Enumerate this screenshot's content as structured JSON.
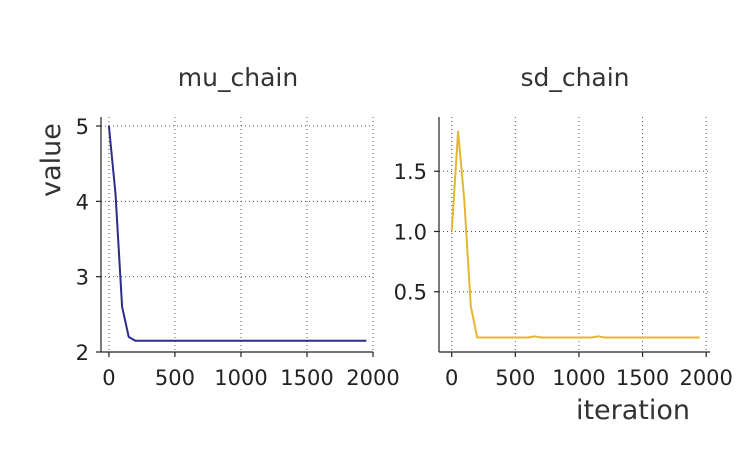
{
  "chart_data": [
    {
      "type": "line",
      "title": "mu_chain",
      "ylabel": "value",
      "xlabel": "",
      "xlim": [
        -60,
        2000
      ],
      "ylim": [
        2.0,
        5.12
      ],
      "xticks": [
        0,
        500,
        1000,
        1500,
        2000
      ],
      "xtick_labels": [
        "0",
        "500",
        "1000",
        "1500",
        "2000"
      ],
      "yticks": [
        2,
        3,
        4,
        5
      ],
      "ytick_labels": [
        "2",
        "3",
        "4",
        "5"
      ],
      "grid": true,
      "series": [
        {
          "color": "#2c2c8c",
          "x": [
            0,
            50,
            100,
            150,
            200,
            250,
            300,
            500,
            1000,
            1500,
            1950
          ],
          "y": [
            5.0,
            4.1,
            2.6,
            2.2,
            2.15,
            2.15,
            2.15,
            2.15,
            2.15,
            2.15,
            2.15
          ]
        }
      ]
    },
    {
      "type": "line",
      "title": "sd_chain",
      "ylabel": "",
      "xlabel": "iteration",
      "xlim": [
        -100,
        2030
      ],
      "ylim": [
        0.0,
        1.95
      ],
      "xticks": [
        0,
        500,
        1000,
        1500,
        2000
      ],
      "xtick_labels": [
        "0",
        "500",
        "1000",
        "1500",
        "2000"
      ],
      "yticks": [
        0.5,
        1.0,
        1.5
      ],
      "ytick_labels": [
        "0.5",
        "1.0",
        "1.5"
      ],
      "grid": true,
      "series": [
        {
          "color": "#e3b733",
          "x": [
            0,
            50,
            100,
            150,
            200,
            250,
            300,
            600,
            650,
            700,
            1100,
            1150,
            1200,
            1500,
            1950
          ],
          "y": [
            1.0,
            1.83,
            1.25,
            0.38,
            0.12,
            0.12,
            0.12,
            0.12,
            0.13,
            0.12,
            0.12,
            0.13,
            0.12,
            0.12,
            0.12
          ]
        }
      ]
    }
  ]
}
